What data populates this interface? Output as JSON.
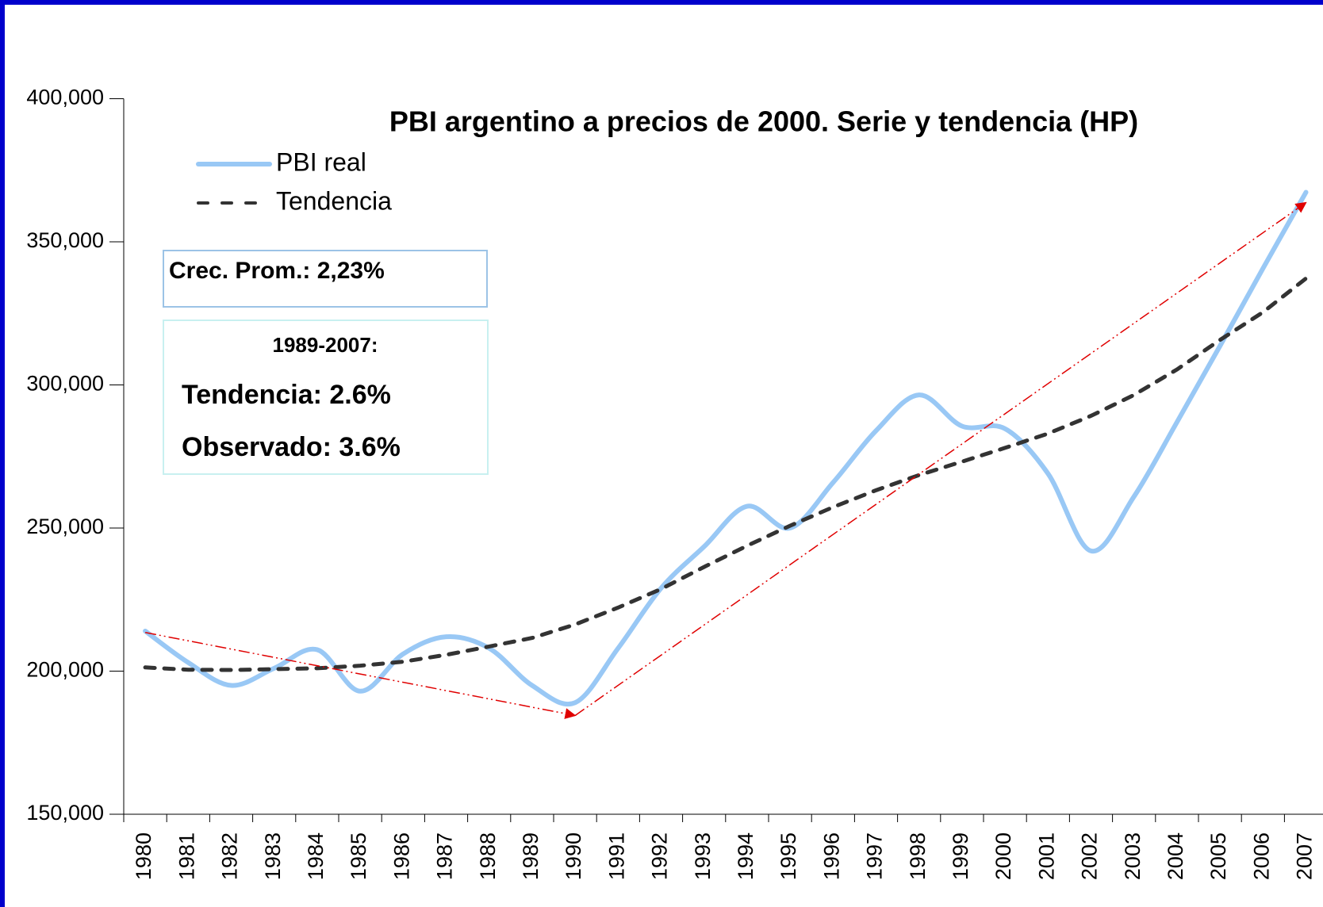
{
  "chart_data": {
    "type": "line",
    "title": "PBI argentino a precios de 2000. Serie y tendencia (HP)",
    "categories": [
      "1980",
      "1981",
      "1982",
      "1983",
      "1984",
      "1985",
      "1986",
      "1987",
      "1988",
      "1989",
      "1990",
      "1991",
      "1992",
      "1993",
      "1994",
      "1995",
      "1996",
      "1997",
      "1998",
      "1999",
      "2000",
      "2001",
      "2002",
      "2003",
      "2004",
      "2005",
      "2006",
      "2007"
    ],
    "series": [
      {
        "name": "PBI real",
        "color": "#99c8f5",
        "style": "solid",
        "values": [
          214000,
          203000,
          195000,
          201000,
          207500,
          193000,
          206000,
          212000,
          208000,
          195000,
          189000,
          208000,
          229000,
          243500,
          257600,
          250000,
          265900,
          284000,
          296500,
          285600,
          284700,
          269000,
          242000,
          261000,
          287000,
          313600,
          340700,
          367300
        ]
      },
      {
        "name": "Tendencia",
        "color": "#333333",
        "style": "dashed",
        "values": [
          201300,
          200500,
          200400,
          200700,
          201000,
          201900,
          203300,
          205700,
          208600,
          211600,
          216300,
          222200,
          228700,
          236400,
          243800,
          250800,
          257300,
          263200,
          268500,
          273200,
          278000,
          283000,
          289200,
          296500,
          305400,
          315700,
          325400,
          337200
        ]
      }
    ],
    "arrows": [
      {
        "start": [
          "1980",
          213500
        ],
        "end": [
          "1990",
          184500
        ],
        "color": "#e00000"
      },
      {
        "start": [
          "1990",
          184500
        ],
        "end": [
          "2007",
          363700
        ],
        "color": "#e00000"
      }
    ],
    "annotations": {
      "avg_growth": "Crec. Prom.: 2,23%",
      "period": "1989-2007:",
      "trend_growth": "Tendencia: 2.6%",
      "observed_growth": "Observado: 3.6%"
    },
    "ylim": [
      150000,
      400000
    ],
    "yticks": [
      {
        "value": 150000,
        "label": "150,000"
      },
      {
        "value": 200000,
        "label": "200,000"
      },
      {
        "value": 250000,
        "label": "250,000"
      },
      {
        "value": 300000,
        "label": "300,000"
      },
      {
        "value": 350000,
        "label": "350,000"
      },
      {
        "value": 400000,
        "label": "400,000"
      }
    ],
    "grid": false,
    "legend": "top-left"
  }
}
